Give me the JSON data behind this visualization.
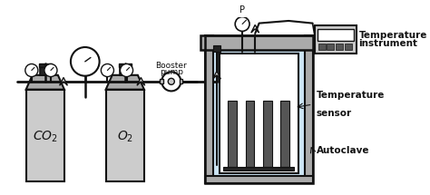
{
  "bg_color": "#ffffff",
  "light_gray": "#cccccc",
  "mid_gray": "#aaaaaa",
  "dark_gray": "#555555",
  "darkest": "#222222",
  "line_color": "#111111",
  "water_color": "#cce5f5",
  "text_color": "#111111",
  "booster_label": [
    "Booster",
    "pump"
  ],
  "temp_inst_label": [
    "Temperature",
    "instrument"
  ],
  "temp_sensor_label": [
    "Temperature",
    "sensor"
  ],
  "autoclave_label": "Autoclave",
  "co2_label": "CO",
  "o2_label": "O",
  "p_label": "P"
}
